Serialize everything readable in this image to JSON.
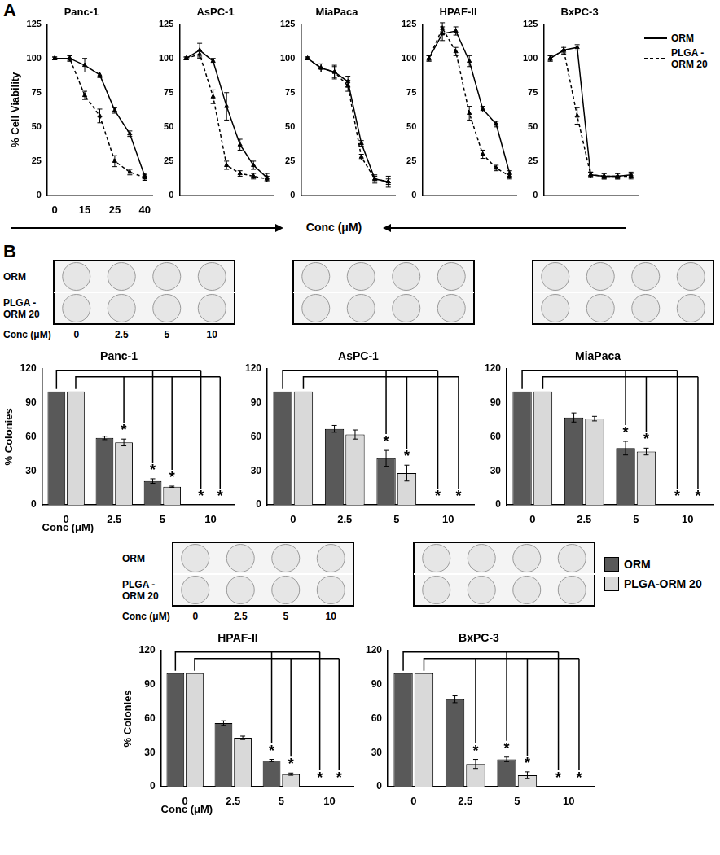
{
  "panel_labels": [
    "A",
    "B"
  ],
  "panel_a_x_label": "Conc (μM)",
  "plates": {
    "row_labels": [
      "ORM",
      "PLGA -ORM 20"
    ],
    "x_label": "Conc (μM)",
    "concentrations": [
      0,
      2.5,
      5,
      10
    ]
  },
  "chart_data": [
    {
      "type": "line",
      "title": "Panc-1",
      "y_label": "% Cell Viability",
      "categories": [
        "0",
        null,
        "15",
        null,
        "25",
        null,
        "40"
      ],
      "ylim": [
        0,
        125
      ],
      "yticks": [
        0,
        25,
        50,
        75,
        100,
        125
      ],
      "grid": false,
      "tick_labels": true,
      "series": [
        {
          "name": "ORM",
          "color": "#000000",
          "line_style": "solid",
          "marker": "triangle",
          "values": [
            100,
            100,
            95,
            88,
            62,
            45,
            14
          ],
          "errors": [
            1,
            2,
            5,
            2,
            2,
            2,
            2
          ]
        },
        {
          "name": "PLGA -ORM 20",
          "color": "#000000",
          "line_style": "dashed",
          "marker": "triangle",
          "values": [
            100,
            100,
            73,
            58,
            25,
            17,
            13
          ],
          "errors": [
            1,
            2,
            3,
            5,
            4,
            2,
            2
          ]
        }
      ]
    },
    {
      "type": "line",
      "title": "AsPC-1",
      "categories": [
        null,
        null,
        null,
        null,
        null,
        null,
        null
      ],
      "ylim": [
        0,
        125
      ],
      "yticks": [
        0,
        25,
        50,
        75,
        100,
        125
      ],
      "grid": false,
      "tick_labels": "y",
      "series": [
        {
          "name": "ORM",
          "color": "#000000",
          "line_style": "solid",
          "marker": "triangle",
          "values": [
            100,
            106,
            98,
            65,
            37,
            22,
            13
          ],
          "errors": [
            1,
            5,
            2,
            10,
            4,
            3,
            3
          ]
        },
        {
          "name": "PLGA -ORM 20",
          "color": "#000000",
          "line_style": "dashed",
          "marker": "triangle",
          "values": [
            100,
            103,
            72,
            22,
            16,
            14,
            12
          ],
          "errors": [
            1,
            3,
            5,
            3,
            2,
            2,
            2
          ]
        }
      ]
    },
    {
      "type": "line",
      "title": "MiaPaca",
      "categories": [
        null,
        null,
        null,
        null,
        null,
        null,
        null
      ],
      "ylim": [
        0,
        125
      ],
      "yticks": [
        0,
        25,
        50,
        75,
        100,
        125
      ],
      "grid": false,
      "tick_labels": "y",
      "series": [
        {
          "name": "ORM",
          "color": "#000000",
          "line_style": "solid",
          "marker": "triangle",
          "values": [
            100,
            93,
            90,
            83,
            38,
            12,
            10
          ],
          "errors": [
            1,
            3,
            5,
            4,
            2,
            3,
            4
          ]
        },
        {
          "name": "PLGA -ORM 20",
          "color": "#000000",
          "line_style": "dashed",
          "marker": "triangle",
          "values": [
            100,
            93,
            90,
            80,
            28,
            12,
            10
          ],
          "errors": [
            1,
            3,
            4,
            4,
            2,
            2,
            2
          ]
        }
      ]
    },
    {
      "type": "line",
      "title": "HPAF-II",
      "categories": [
        null,
        null,
        null,
        null,
        null,
        null,
        null
      ],
      "ylim": [
        0,
        125
      ],
      "yticks": [
        0,
        25,
        50,
        75,
        100,
        125
      ],
      "grid": false,
      "tick_labels": "y",
      "series": [
        {
          "name": "ORM",
          "color": "#000000",
          "line_style": "solid",
          "marker": "triangle",
          "values": [
            100,
            118,
            120,
            98,
            63,
            52,
            16
          ],
          "errors": [
            2,
            5,
            3,
            4,
            2,
            2,
            2
          ]
        },
        {
          "name": "PLGA -ORM 20",
          "color": "#000000",
          "line_style": "dashed",
          "marker": "triangle",
          "values": [
            100,
            122,
            105,
            60,
            30,
            20,
            14
          ],
          "errors": [
            2,
            4,
            3,
            5,
            3,
            2,
            2
          ]
        }
      ]
    },
    {
      "type": "line",
      "title": "BxPC-3",
      "legend": "right",
      "categories": [
        null,
        null,
        null,
        null,
        null,
        null,
        null
      ],
      "ylim": [
        0,
        125
      ],
      "yticks": [
        0,
        25,
        50,
        75,
        100,
        125
      ],
      "grid": false,
      "tick_labels": "y",
      "series": [
        {
          "name": "ORM",
          "color": "#000000",
          "line_style": "solid",
          "marker": "triangle",
          "values": [
            100,
            106,
            108,
            15,
            14,
            14,
            15
          ],
          "errors": [
            2,
            3,
            2,
            2,
            2,
            2,
            2
          ]
        },
        {
          "name": "PLGA -ORM 20",
          "color": "#000000",
          "line_style": "dashed",
          "marker": "triangle",
          "values": [
            100,
            106,
            58,
            15,
            14,
            14,
            14
          ],
          "errors": [
            2,
            2,
            6,
            2,
            2,
            2,
            2
          ]
        }
      ]
    },
    {
      "type": "bar",
      "title": "Panc-1",
      "y_label": "% Colonies",
      "x_label": "Conc (μM)",
      "categories": [
        0,
        2.5,
        5,
        10
      ],
      "ylim": [
        0,
        120
      ],
      "yticks": [
        0,
        30,
        60,
        90,
        120
      ],
      "grid": false,
      "series": [
        {
          "name": "ORM",
          "color": "#595959",
          "values": [
            100,
            59,
            21,
            0
          ],
          "errors": [
            0,
            1.5,
            2,
            0
          ],
          "annotations": [
            null,
            null,
            "*",
            "*"
          ]
        },
        {
          "name": "PLGA-ORM 20",
          "color": "#d9d9d9",
          "values": [
            100,
            55,
            16,
            0
          ],
          "errors": [
            0,
            3,
            0.5,
            0
          ],
          "annotations": [
            null,
            "*",
            "*",
            "*"
          ]
        }
      ]
    },
    {
      "type": "bar",
      "title": "AsPC-1",
      "categories": [
        0,
        2.5,
        5,
        10
      ],
      "ylim": [
        0,
        120
      ],
      "yticks": [
        0,
        30,
        60,
        90,
        120
      ],
      "grid": false,
      "series": [
        {
          "name": "ORM",
          "color": "#595959",
          "values": [
            100,
            67,
            41,
            0
          ],
          "errors": [
            0,
            3,
            7,
            0
          ],
          "annotations": [
            null,
            null,
            "*",
            "*"
          ]
        },
        {
          "name": "PLGA-ORM 20",
          "color": "#d9d9d9",
          "values": [
            100,
            62,
            28,
            0
          ],
          "errors": [
            0,
            4,
            7,
            0
          ],
          "annotations": [
            null,
            null,
            "*",
            "*"
          ]
        }
      ]
    },
    {
      "type": "bar",
      "title": "MiaPaca",
      "categories": [
        0,
        2.5,
        5,
        10
      ],
      "ylim": [
        0,
        120
      ],
      "yticks": [
        0,
        30,
        60,
        90,
        120
      ],
      "grid": false,
      "series": [
        {
          "name": "ORM",
          "color": "#595959",
          "values": [
            100,
            77,
            50,
            0
          ],
          "errors": [
            0,
            4,
            6,
            0
          ],
          "annotations": [
            null,
            null,
            "*",
            "*"
          ]
        },
        {
          "name": "PLGA-ORM 20",
          "color": "#d9d9d9",
          "values": [
            100,
            76,
            47,
            0
          ],
          "errors": [
            0,
            2,
            3,
            0
          ],
          "annotations": [
            null,
            null,
            "*",
            "*"
          ]
        }
      ]
    },
    {
      "type": "bar",
      "title": "HPAF-II",
      "y_label": "% Colonies",
      "x_label": "Conc (μM)",
      "categories": [
        0,
        2.5,
        5,
        10
      ],
      "ylim": [
        0,
        120
      ],
      "yticks": [
        0,
        30,
        60,
        90,
        120
      ],
      "grid": false,
      "series": [
        {
          "name": "ORM",
          "color": "#595959",
          "values": [
            100,
            56,
            23,
            0
          ],
          "errors": [
            0,
            2,
            1,
            0
          ],
          "annotations": [
            null,
            null,
            "*",
            "*"
          ]
        },
        {
          "name": "PLGA-ORM 20",
          "color": "#d9d9d9",
          "values": [
            100,
            43,
            11,
            0
          ],
          "errors": [
            0,
            1.5,
            1,
            0
          ],
          "annotations": [
            null,
            null,
            "*",
            "*"
          ]
        }
      ]
    },
    {
      "type": "bar",
      "title": "BxPC-3",
      "legend": "right",
      "categories": [
        0,
        2.5,
        5,
        10
      ],
      "ylim": [
        0,
        120
      ],
      "yticks": [
        0,
        30,
        60,
        90,
        120
      ],
      "grid": false,
      "series": [
        {
          "name": "ORM",
          "color": "#595959",
          "values": [
            100,
            77,
            24,
            0
          ],
          "errors": [
            0,
            3,
            2,
            0
          ],
          "annotations": [
            null,
            null,
            "*",
            "*"
          ]
        },
        {
          "name": "PLGA-ORM 20",
          "color": "#d9d9d9",
          "values": [
            100,
            20,
            10,
            0
          ],
          "errors": [
            0,
            4,
            3,
            0
          ],
          "annotations": [
            null,
            "*",
            "*",
            "*"
          ]
        }
      ]
    }
  ]
}
